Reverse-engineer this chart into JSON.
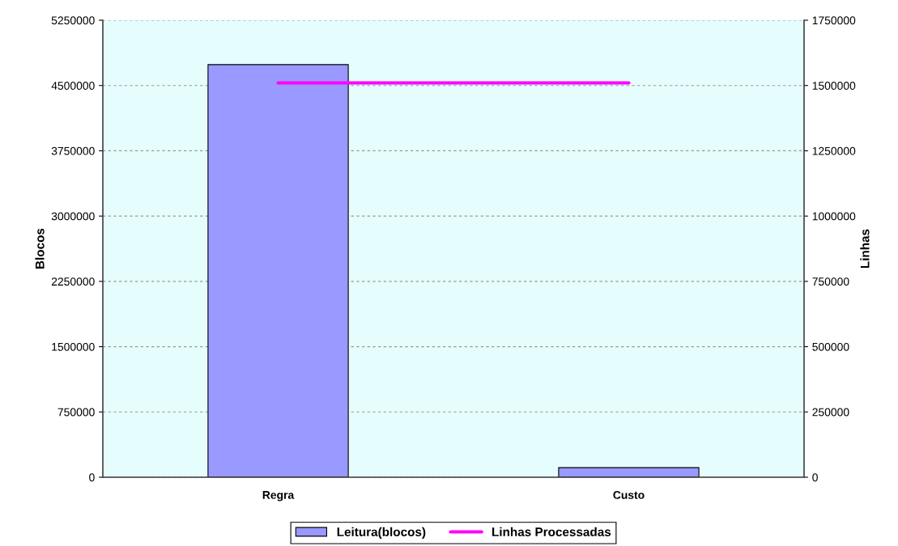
{
  "chart_data": {
    "type": "bar",
    "categories": [
      "Regra",
      "Custo"
    ],
    "ylabel": "Blocos",
    "y2label": "Linhas",
    "series": [
      {
        "name": "Leitura(blocos)",
        "color": "#9999ff",
        "values": [
          4740000,
          110000
        ]
      },
      {
        "name": "Linhas Processadas",
        "type": "line",
        "axis": "y2",
        "color": "#ff00ff",
        "values": [
          1510000,
          1510000
        ]
      }
    ],
    "ylim": [
      0,
      5250000
    ],
    "yticks": [
      0,
      750000,
      1500000,
      2250000,
      3000000,
      3750000,
      4500000,
      5250000
    ],
    "y2lim": [
      0,
      1750000
    ],
    "y2ticks": [
      0,
      250000,
      500000,
      750000,
      1000000,
      1250000,
      1500000,
      1750000
    ],
    "grid": "y",
    "legend": "bottom",
    "marker": "none"
  }
}
